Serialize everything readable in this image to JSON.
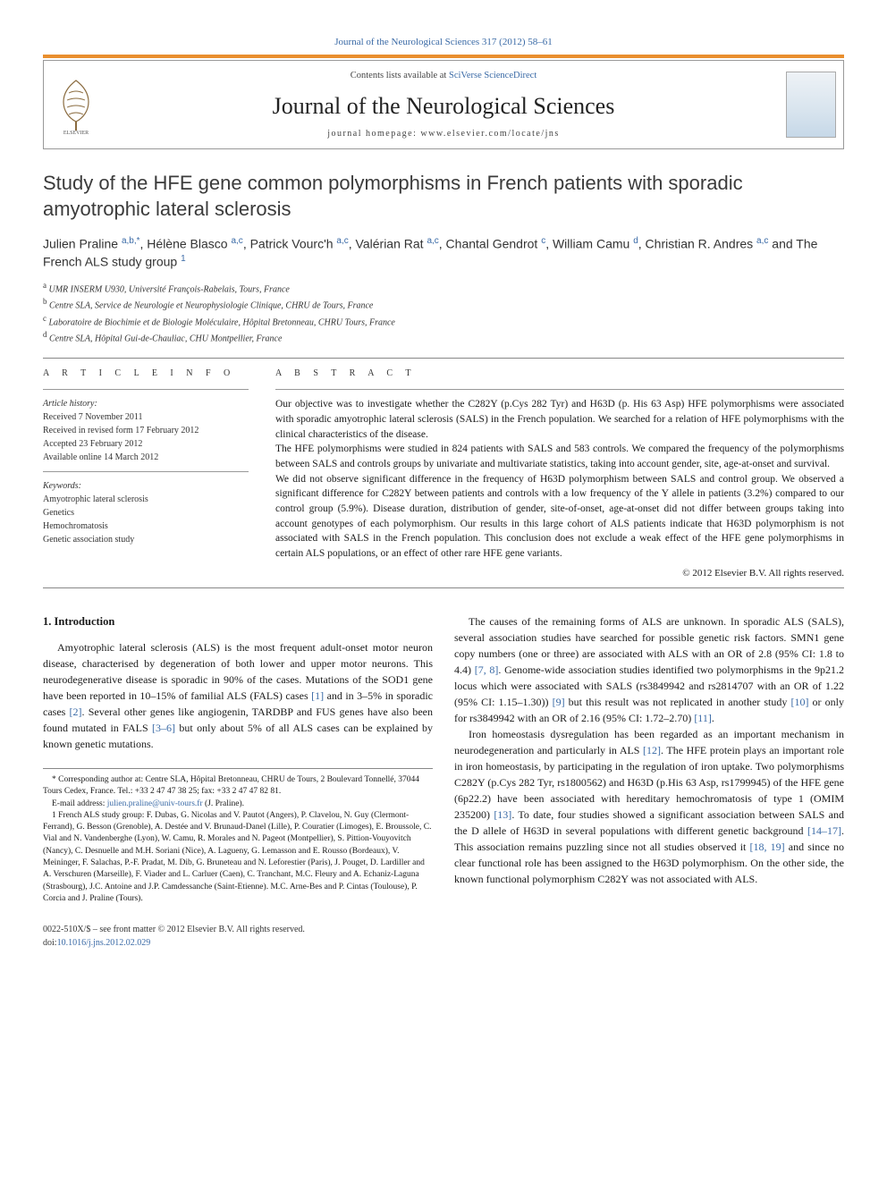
{
  "top_link": "Journal of the Neurological Sciences 317 (2012) 58–61",
  "header": {
    "contents_line_prefix": "Contents lists available at ",
    "contents_link": "SciVerse ScienceDirect",
    "journal_name": "Journal of the Neurological Sciences",
    "homepage_label": "journal homepage: www.elsevier.com/locate/jns"
  },
  "title": "Study of the HFE gene common polymorphisms in French patients with sporadic amyotrophic lateral sclerosis",
  "authors_html": "Julien Praline <sup class='aff'>a,b,*</sup>, Hélène Blasco <sup class='aff'>a,c</sup>, Patrick Vourc'h <sup class='aff'>a,c</sup>, Valérian Rat <sup class='aff'>a,c</sup>, Chantal Gendrot <sup class='aff'>c</sup>, William Camu <sup class='aff'>d</sup>, Christian R. Andres <sup class='aff'>a,c</sup> and The French ALS study group <sup class='aff'>1</sup>",
  "affiliations": [
    {
      "sup": "a",
      "text": "UMR INSERM U930, Université François-Rabelais, Tours, France"
    },
    {
      "sup": "b",
      "text": "Centre SLA, Service de Neurologie et Neurophysiologie Clinique, CHRU de Tours, France"
    },
    {
      "sup": "c",
      "text": "Laboratoire de Biochimie et de Biologie Moléculaire, Hôpital Bretonneau, CHRU Tours, France"
    },
    {
      "sup": "d",
      "text": "Centre SLA, Hôpital Gui-de-Chauliac, CHU Montpellier, France"
    }
  ],
  "article_info": {
    "heading": "A R T I C L E   I N F O",
    "history_label": "Article history:",
    "history": [
      "Received 7 November 2011",
      "Received in revised form 17 February 2012",
      "Accepted 23 February 2012",
      "Available online 14 March 2012"
    ],
    "keywords_label": "Keywords:",
    "keywords": [
      "Amyotrophic lateral sclerosis",
      "Genetics",
      "Hemochromatosis",
      "Genetic association study"
    ]
  },
  "abstract": {
    "heading": "A B S T R A C T",
    "paragraphs": [
      "Our objective was to investigate whether the C282Y (p.Cys 282 Tyr) and H63D (p. His 63 Asp) HFE polymorphisms were associated with sporadic amyotrophic lateral sclerosis (SALS) in the French population. We searched for a relation of HFE polymorphisms with the clinical characteristics of the disease.",
      "The HFE polymorphisms were studied in 824 patients with SALS and 583 controls. We compared the frequency of the polymorphisms between SALS and controls groups by univariate and multivariate statistics, taking into account gender, site, age-at-onset and survival.",
      "We did not observe significant difference in the frequency of H63D polymorphism between SALS and control group. We observed a significant difference for C282Y between patients and controls with a low frequency of the Y allele in patients (3.2%) compared to our control group (5.9%). Disease duration, distribution of gender, site-of-onset, age-at-onset did not differ between groups taking into account genotypes of each polymorphism. Our results in this large cohort of ALS patients indicate that H63D polymorphism is not associated with SALS in the French population. This conclusion does not exclude a weak effect of the HFE gene polymorphisms in certain ALS populations, or an effect of other rare HFE gene variants."
    ],
    "copyright": "© 2012 Elsevier B.V. All rights reserved."
  },
  "body": {
    "section1_heading": "1. Introduction",
    "left_paragraphs": [
      "Amyotrophic lateral sclerosis (ALS) is the most frequent adult-onset motor neuron disease, characterised by degeneration of both lower and upper motor neurons. This neurodegenerative disease is sporadic in 90% of the cases. Mutations of the SOD1 gene have been reported in 10–15% of familial ALS (FALS) cases [1] and in 3–5% in sporadic cases [2]. Several other genes like angiogenin, TARDBP and FUS genes have also been found mutated in FALS [3–6] but only about 5% of all ALS cases can be explained by known genetic mutations."
    ],
    "right_paragraphs": [
      "The causes of the remaining forms of ALS are unknown. In sporadic ALS (SALS), several association studies have searched for possible genetic risk factors. SMN1 gene copy numbers (one or three) are associated with ALS with an OR of 2.8 (95% CI: 1.8 to 4.4) [7, 8]. Genome-wide association studies identified two polymorphisms in the 9p21.2 locus which were associated with SALS (rs3849942 and rs2814707 with an OR of 1.22 (95% CI: 1.15–1.30)) [9] but this result was not replicated in another study [10] or only for rs3849942 with an OR of 2.16 (95% CI: 1.72–2.70) [11].",
      "Iron homeostasis dysregulation has been regarded as an important mechanism in neurodegeneration and particularly in ALS [12]. The HFE protein plays an important role in iron homeostasis, by participating in the regulation of iron uptake. Two polymorphisms C282Y (p.Cys 282 Tyr, rs1800562) and H63D (p.His 63 Asp, rs1799945) of the HFE gene (6p22.2) have been associated with hereditary hemochromatosis of type 1 (OMIM 235200) [13]. To date, four studies showed a significant association between SALS and the D allele of H63D in several populations with different genetic background [14–17]. This association remains puzzling since not all studies observed it [18, 19] and since no clear functional role has been assigned to the H63D polymorphism. On the other side, the known functional polymorphism C282Y was not associated with ALS."
    ]
  },
  "footnotes": {
    "corr": "* Corresponding author at: Centre SLA, Hôpital Bretonneau, CHRU de Tours, 2 Boulevard Tonnellé, 37044 Tours Cedex, France. Tel.: +33 2 47 47 38 25; fax: +33 2 47 47 82 81.",
    "email_label": "E-mail address: ",
    "email": "julien.praline@univ-tours.fr",
    "email_suffix": " (J. Praline).",
    "group": "1 French ALS study group: F. Dubas, G. Nicolas and V. Pautot (Angers), P. Clavelou, N. Guy (Clermont-Ferrand), G. Besson (Grenoble), A. Destée and V. Brunaud-Danel (Lille), P. Couratier (Limoges), E. Broussole, C. Vial and N. Vandenberghe (Lyon), W. Camu, R. Morales and N. Pageot (Montpellier), S. Pittion-Vouyovitch (Nancy), C. Desnuelle and M.H. Soriani (Nice), A. Lagueny, G. Lemasson and E. Rousso (Bordeaux), V. Meininger, F. Salachas, P.-F. Pradat, M. Dib, G. Bruneteau and N. Leforestier (Paris), J. Pouget, D. Lardiller and A. Verschuren (Marseille), F. Viader and L. Carluer (Caen), C. Tranchant, M.C. Fleury and A. Echaniz-Laguna (Strasbourg), J.C. Antoine and J.P. Camdessanche (Saint-Etienne). M.C. Arne-Bes and P. Cintas (Toulouse), P. Corcia and J. Praline (Tours)."
  },
  "bottom": {
    "line1": "0022-510X/$ – see front matter © 2012 Elsevier B.V. All rights reserved.",
    "line2": "doi:10.1016/j.jns.2012.02.029"
  },
  "colors": {
    "link": "#3a6aa6",
    "orange": "#e98f2e",
    "text": "#1a1a1a",
    "muted": "#444"
  }
}
